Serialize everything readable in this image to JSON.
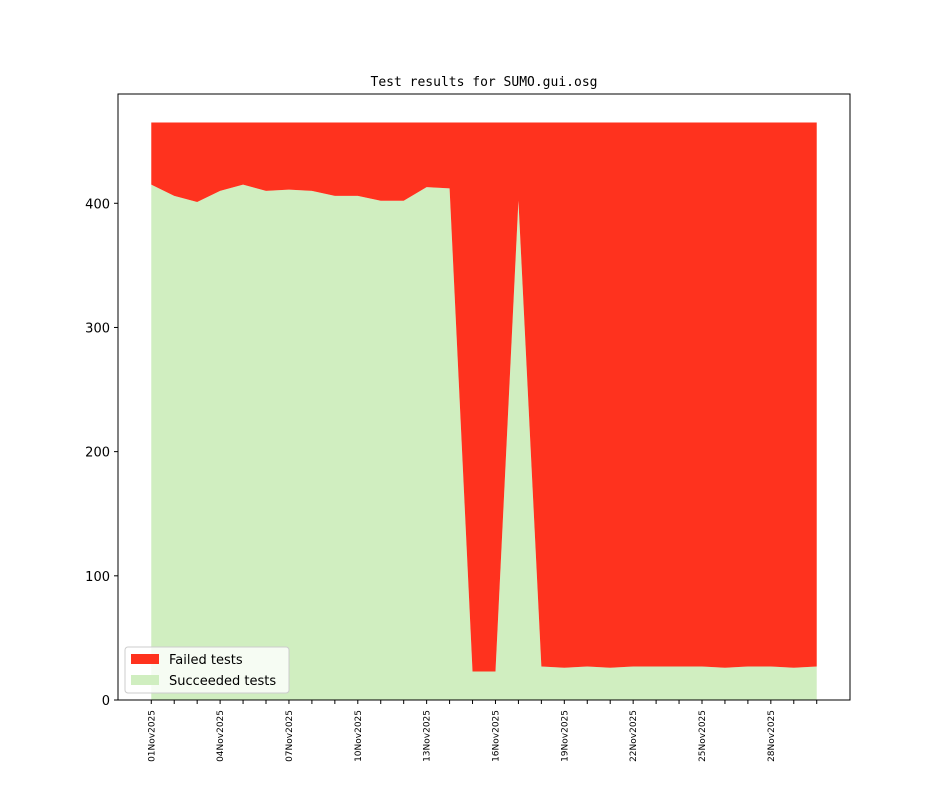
{
  "chart_data": {
    "type": "stacked-area",
    "title": "Test results for SUMO.gui.osg",
    "categories": [
      "01Nov2025",
      null,
      null,
      "04Nov2025",
      null,
      null,
      "07Nov2025",
      null,
      null,
      "10Nov2025",
      null,
      null,
      "13Nov2025",
      null,
      null,
      "16Nov2025",
      null,
      null,
      "19Nov2025",
      null,
      null,
      "22Nov2025",
      null,
      null,
      "25Nov2025",
      null,
      null,
      "28Nov2025",
      null,
      null
    ],
    "series": [
      {
        "name": "Succeeded tests",
        "color": "#d0eec0",
        "values": [
          415,
          406,
          401,
          410,
          415,
          410,
          411,
          410,
          406,
          406,
          402,
          402,
          413,
          412,
          23,
          23,
          402,
          27,
          26,
          27,
          26,
          27,
          27,
          27,
          27,
          26,
          27,
          27,
          26,
          27
        ]
      },
      {
        "name": "Failed tests",
        "color": "#ff321e",
        "values": [
          50,
          59,
          64,
          55,
          50,
          55,
          54,
          55,
          59,
          59,
          63,
          63,
          52,
          53,
          442,
          442,
          63,
          438,
          439,
          438,
          439,
          438,
          438,
          438,
          438,
          439,
          438,
          438,
          439,
          438
        ]
      }
    ],
    "ylim": [
      0,
      488
    ],
    "yticks": [
      0,
      100,
      200,
      300,
      400
    ],
    "legend": "lower left"
  }
}
